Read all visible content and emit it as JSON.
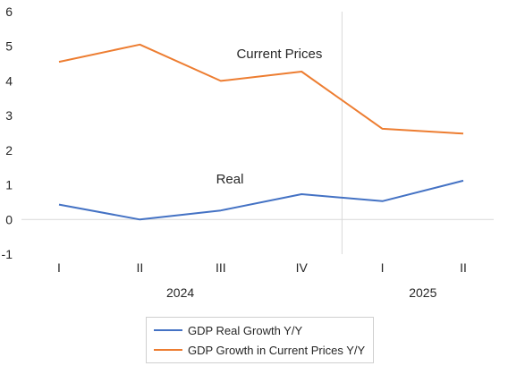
{
  "chart_data": {
    "type": "line",
    "categories": [
      "I",
      "II",
      "III",
      "IV",
      "I",
      "II"
    ],
    "year_groups": [
      {
        "label": "2024",
        "quarters": 4
      },
      {
        "label": "2025",
        "quarters": 2
      }
    ],
    "series": [
      {
        "name": "GDP Real Growth Y/Y",
        "color": "#4472c4",
        "values": [
          0.43,
          0.0,
          0.26,
          0.73,
          0.53,
          1.12
        ]
      },
      {
        "name": "GDP Growth in Current Prices Y/Y",
        "color": "#ed7d31",
        "values": [
          4.55,
          5.05,
          4.0,
          4.27,
          2.62,
          2.48
        ]
      }
    ],
    "annotations": [
      {
        "text": "Current Prices",
        "series": 1
      },
      {
        "text": "Real",
        "series": 0
      }
    ],
    "ylim": [
      -1,
      6
    ],
    "yticks": [
      "-1",
      "0",
      "1",
      "2",
      "3",
      "4",
      "5",
      "6"
    ],
    "grid": false,
    "legend_position": "bottom"
  }
}
